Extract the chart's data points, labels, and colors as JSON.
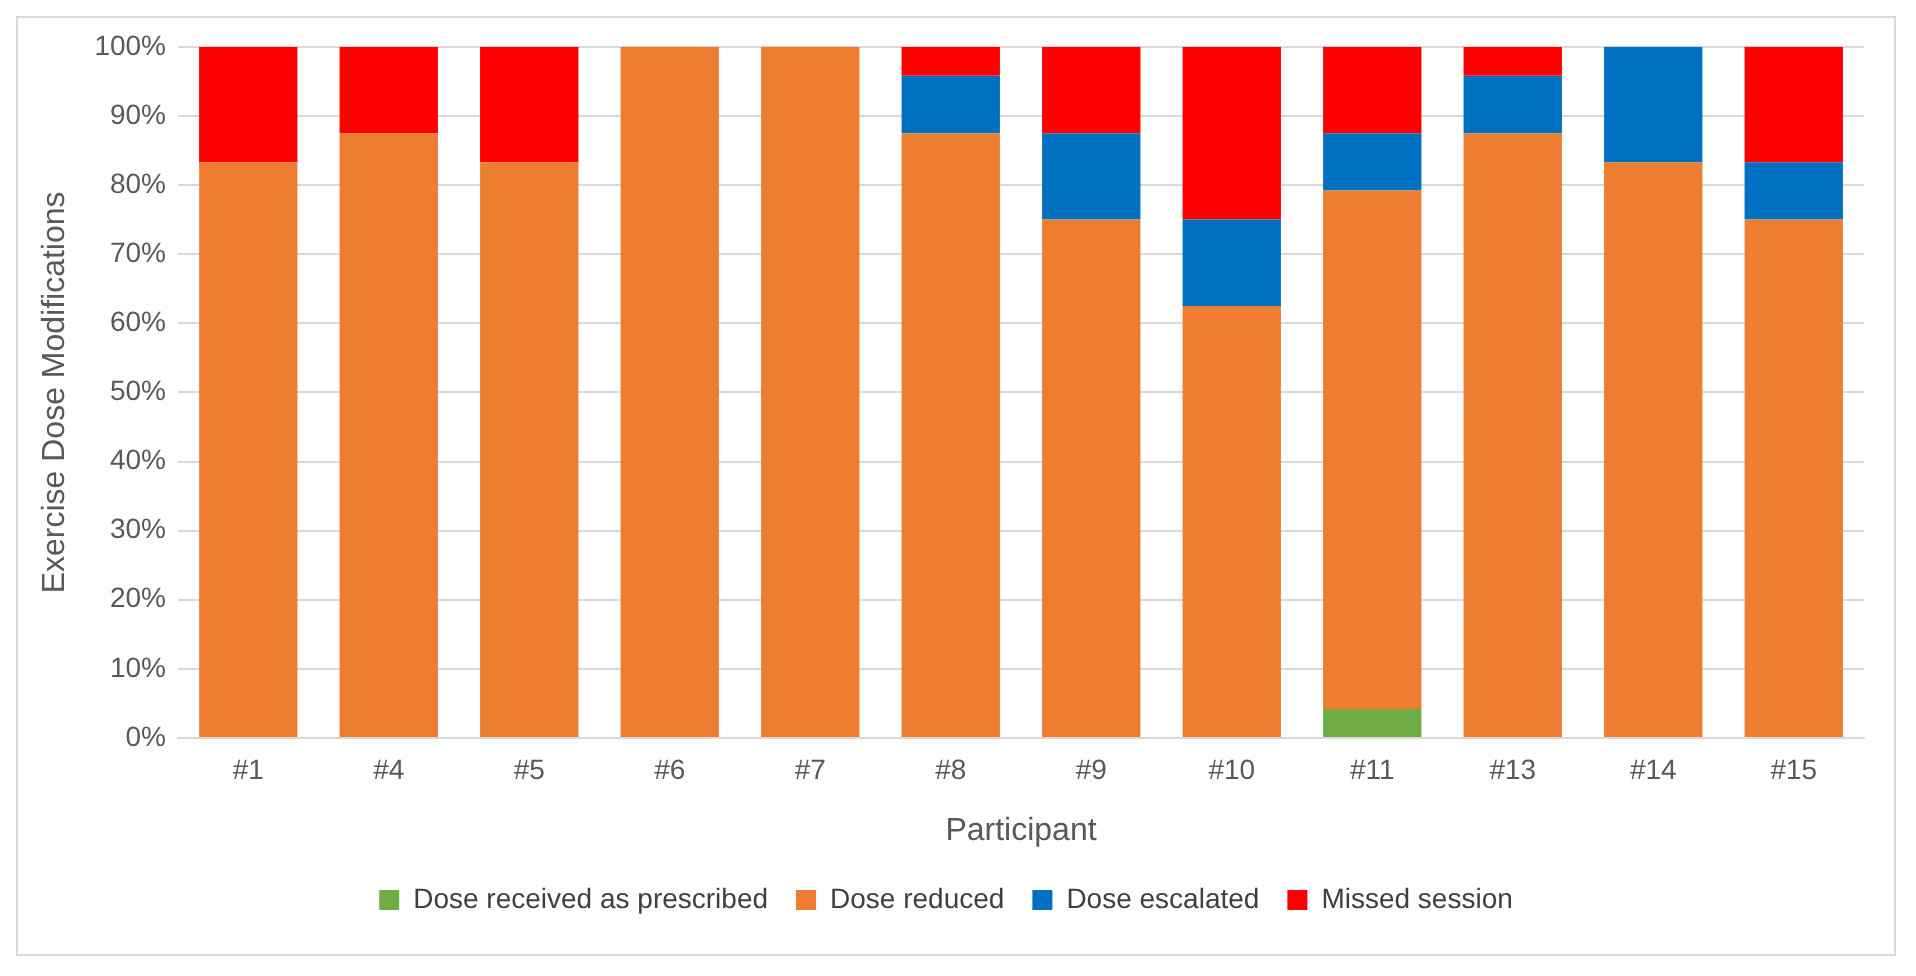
{
  "chart_data": {
    "type": "bar",
    "stacked": true,
    "xlabel": "Participant",
    "ylabel": "Exercise Dose Modifications",
    "categories": [
      "#1",
      "#4",
      "#5",
      "#6",
      "#7",
      "#8",
      "#9",
      "#10",
      "#11",
      "#13",
      "#14",
      "#15"
    ],
    "series": [
      {
        "name": "Dose received as prescribed",
        "color": "#70ad47",
        "values": [
          0,
          0,
          0,
          0,
          0,
          0,
          0,
          0,
          4.2,
          0,
          0,
          0
        ]
      },
      {
        "name": "Dose reduced",
        "color": "#ed7d31",
        "values": [
          83.3,
          87.5,
          83.3,
          100,
          100,
          87.5,
          75,
          62.5,
          75,
          87.5,
          83.3,
          75
        ]
      },
      {
        "name": "Dose escalated",
        "color": "#0070c0",
        "values": [
          0,
          0,
          0,
          0,
          0,
          8.3,
          12.5,
          12.5,
          8.3,
          8.3,
          16.7,
          8.3
        ]
      },
      {
        "name": "Missed session",
        "color": "#ff0000",
        "values": [
          16.7,
          12.5,
          16.7,
          0,
          0,
          4.2,
          12.5,
          25,
          12.5,
          4.2,
          0,
          16.7
        ]
      }
    ],
    "ylim": [
      0,
      100
    ],
    "yticks": [
      {
        "value": 0,
        "label": "0%"
      },
      {
        "value": 10,
        "label": "10%"
      },
      {
        "value": 20,
        "label": "20%"
      },
      {
        "value": 30,
        "label": "30%"
      },
      {
        "value": 40,
        "label": "40%"
      },
      {
        "value": 50,
        "label": "50%"
      },
      {
        "value": 60,
        "label": "60%"
      },
      {
        "value": 70,
        "label": "70%"
      },
      {
        "value": 80,
        "label": "80%"
      },
      {
        "value": 90,
        "label": "90%"
      },
      {
        "value": 100,
        "label": "100%"
      }
    ],
    "grid": "y",
    "legend": "bottom"
  }
}
